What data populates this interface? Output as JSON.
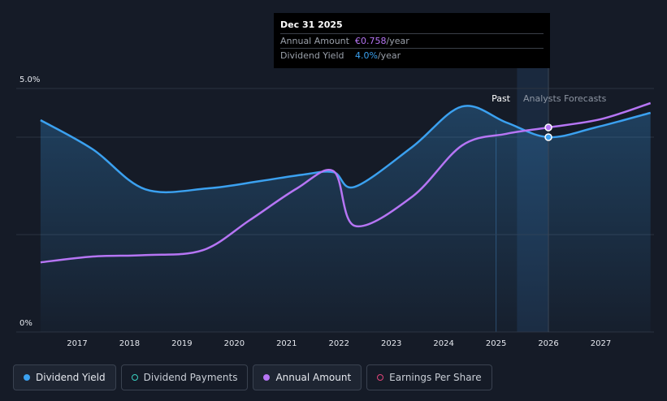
{
  "tooltip": {
    "date": "Dec 31 2025",
    "rows": [
      {
        "label": "Annual Amount",
        "value": "€0.758",
        "unit": "/year"
      },
      {
        "label": "Dividend Yield",
        "value": "4.0%",
        "unit": "/year"
      }
    ]
  },
  "regions": {
    "past": "Past",
    "forecast": "Analysts Forecasts"
  },
  "legend": [
    {
      "label": "Dividend Yield",
      "color": "#3ba1f0",
      "filled": true
    },
    {
      "label": "Dividend Payments",
      "color": "#3ad1c2",
      "filled": false
    },
    {
      "label": "Annual Amount",
      "color": "#b675f4",
      "filled": true
    },
    {
      "label": "Earnings Per Share",
      "color": "#e0457a",
      "filled": false
    }
  ],
  "chart_data": {
    "type": "line",
    "x_ticks": [
      "2017",
      "2018",
      "2019",
      "2020",
      "2021",
      "2022",
      "2023",
      "2024",
      "2025",
      "2026",
      "2027"
    ],
    "y_ticks": [
      "5.0%",
      "0%"
    ],
    "ylim": [
      0,
      5.0
    ],
    "forecast_start": 2025.4,
    "highlight_x": 2026.0,
    "series": [
      {
        "name": "Dividend Yield",
        "color": "#3ba1f0",
        "points": [
          [
            2016.3,
            4.35
          ],
          [
            2017.3,
            3.75
          ],
          [
            2018.3,
            2.93
          ],
          [
            2019.5,
            2.95
          ],
          [
            2020.5,
            3.1
          ],
          [
            2021.3,
            3.23
          ],
          [
            2021.9,
            3.28
          ],
          [
            2022.3,
            2.98
          ],
          [
            2023.4,
            3.8
          ],
          [
            2024.35,
            4.63
          ],
          [
            2025.2,
            4.3
          ],
          [
            2026.0,
            4.0
          ],
          [
            2026.9,
            4.2
          ],
          [
            2027.95,
            4.5
          ]
        ]
      },
      {
        "name": "Annual Amount",
        "color": "#b675f4",
        "points": [
          [
            2016.3,
            1.43
          ],
          [
            2017.3,
            1.55
          ],
          [
            2018.3,
            1.58
          ],
          [
            2019.4,
            1.68
          ],
          [
            2020.3,
            2.3
          ],
          [
            2021.2,
            2.95
          ],
          [
            2021.9,
            3.3
          ],
          [
            2022.3,
            2.18
          ],
          [
            2023.4,
            2.78
          ],
          [
            2024.35,
            3.83
          ],
          [
            2025.2,
            4.07
          ],
          [
            2026.0,
            4.2
          ],
          [
            2027.0,
            4.37
          ],
          [
            2027.95,
            4.7
          ]
        ]
      }
    ]
  }
}
